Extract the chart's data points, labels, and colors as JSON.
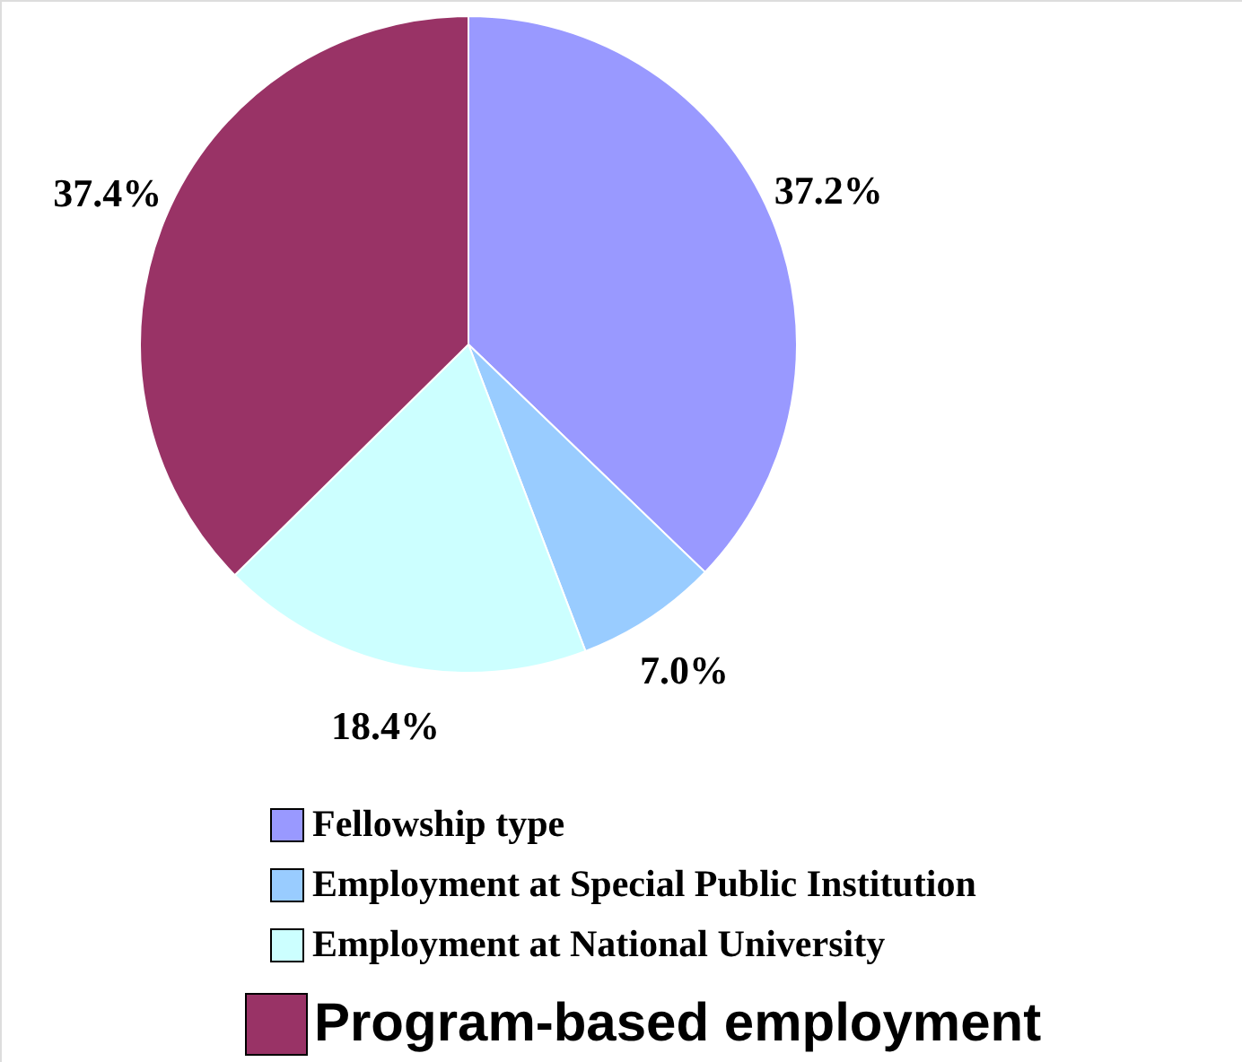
{
  "chart_data": {
    "type": "pie",
    "categories": [
      "Fellowship type",
      "Employment at Special Public Institution",
      "Employment at National University",
      "Program-based employment"
    ],
    "values": [
      37.2,
      7.0,
      18.4,
      37.4
    ],
    "value_labels": [
      "37.2%",
      "7.0%",
      "18.4%",
      "37.4%"
    ],
    "colors": [
      "#9999ff",
      "#99ccff",
      "#ccffff",
      "#993366"
    ],
    "legend": "bottom"
  }
}
